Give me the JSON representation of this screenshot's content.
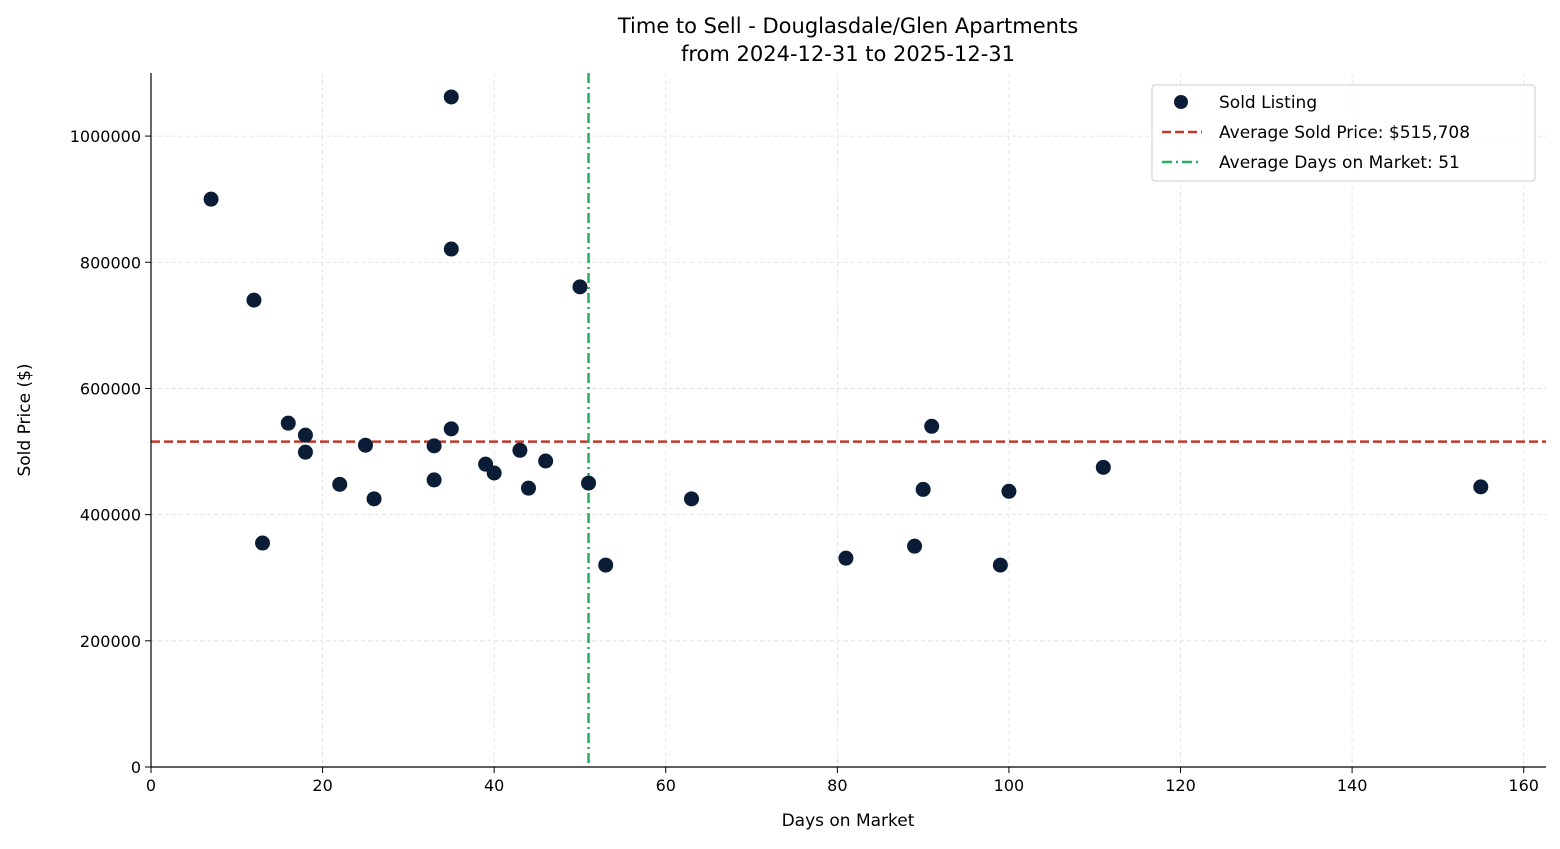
{
  "chart_data": {
    "type": "scatter",
    "title": "Time to Sell - Douglasdale/Glen Apartments",
    "subtitle": "from 2024-12-31 to 2025-12-31",
    "xlabel": "Days on Market",
    "ylabel": "Sold Price ($)",
    "xlim": [
      0,
      162.6
    ],
    "ylim": [
      0,
      1100000
    ],
    "xticks": [
      0,
      20,
      40,
      60,
      80,
      100,
      120,
      140,
      160
    ],
    "yticks": [
      0,
      200000,
      400000,
      600000,
      800000,
      1000000
    ],
    "grid": true,
    "legend_placement": "top-right",
    "colors": {
      "points": "#0b1d36",
      "avg_price": "#c0392b",
      "avg_days": "#27ae60"
    },
    "series": [
      {
        "name": "Sold Listing",
        "points": [
          [
            7,
            900000
          ],
          [
            12,
            740000
          ],
          [
            13,
            355000
          ],
          [
            16,
            545000
          ],
          [
            18,
            526000
          ],
          [
            18,
            499000
          ],
          [
            22,
            448000
          ],
          [
            25,
            510000
          ],
          [
            26,
            425000
          ],
          [
            33,
            509000
          ],
          [
            33,
            455000
          ],
          [
            35,
            1062000
          ],
          [
            35,
            821000
          ],
          [
            35,
            536000
          ],
          [
            39,
            480000
          ],
          [
            40,
            466000
          ],
          [
            43,
            502000
          ],
          [
            44,
            442000
          ],
          [
            46,
            485000
          ],
          [
            50,
            761000
          ],
          [
            51,
            450000
          ],
          [
            53,
            320000
          ],
          [
            63,
            425000
          ],
          [
            81,
            331000
          ],
          [
            89,
            350000
          ],
          [
            90,
            440000
          ],
          [
            91,
            540000
          ],
          [
            99,
            320000
          ],
          [
            100,
            437000
          ],
          [
            111,
            475000
          ],
          [
            155,
            444000
          ]
        ]
      }
    ],
    "reference_lines": [
      {
        "name": "Average Sold Price: $515,708",
        "axis": "y",
        "value": 515708,
        "style": "dashed"
      },
      {
        "name": "Average Days on Market: 51",
        "axis": "x",
        "value": 51,
        "style": "dashdot"
      }
    ]
  }
}
